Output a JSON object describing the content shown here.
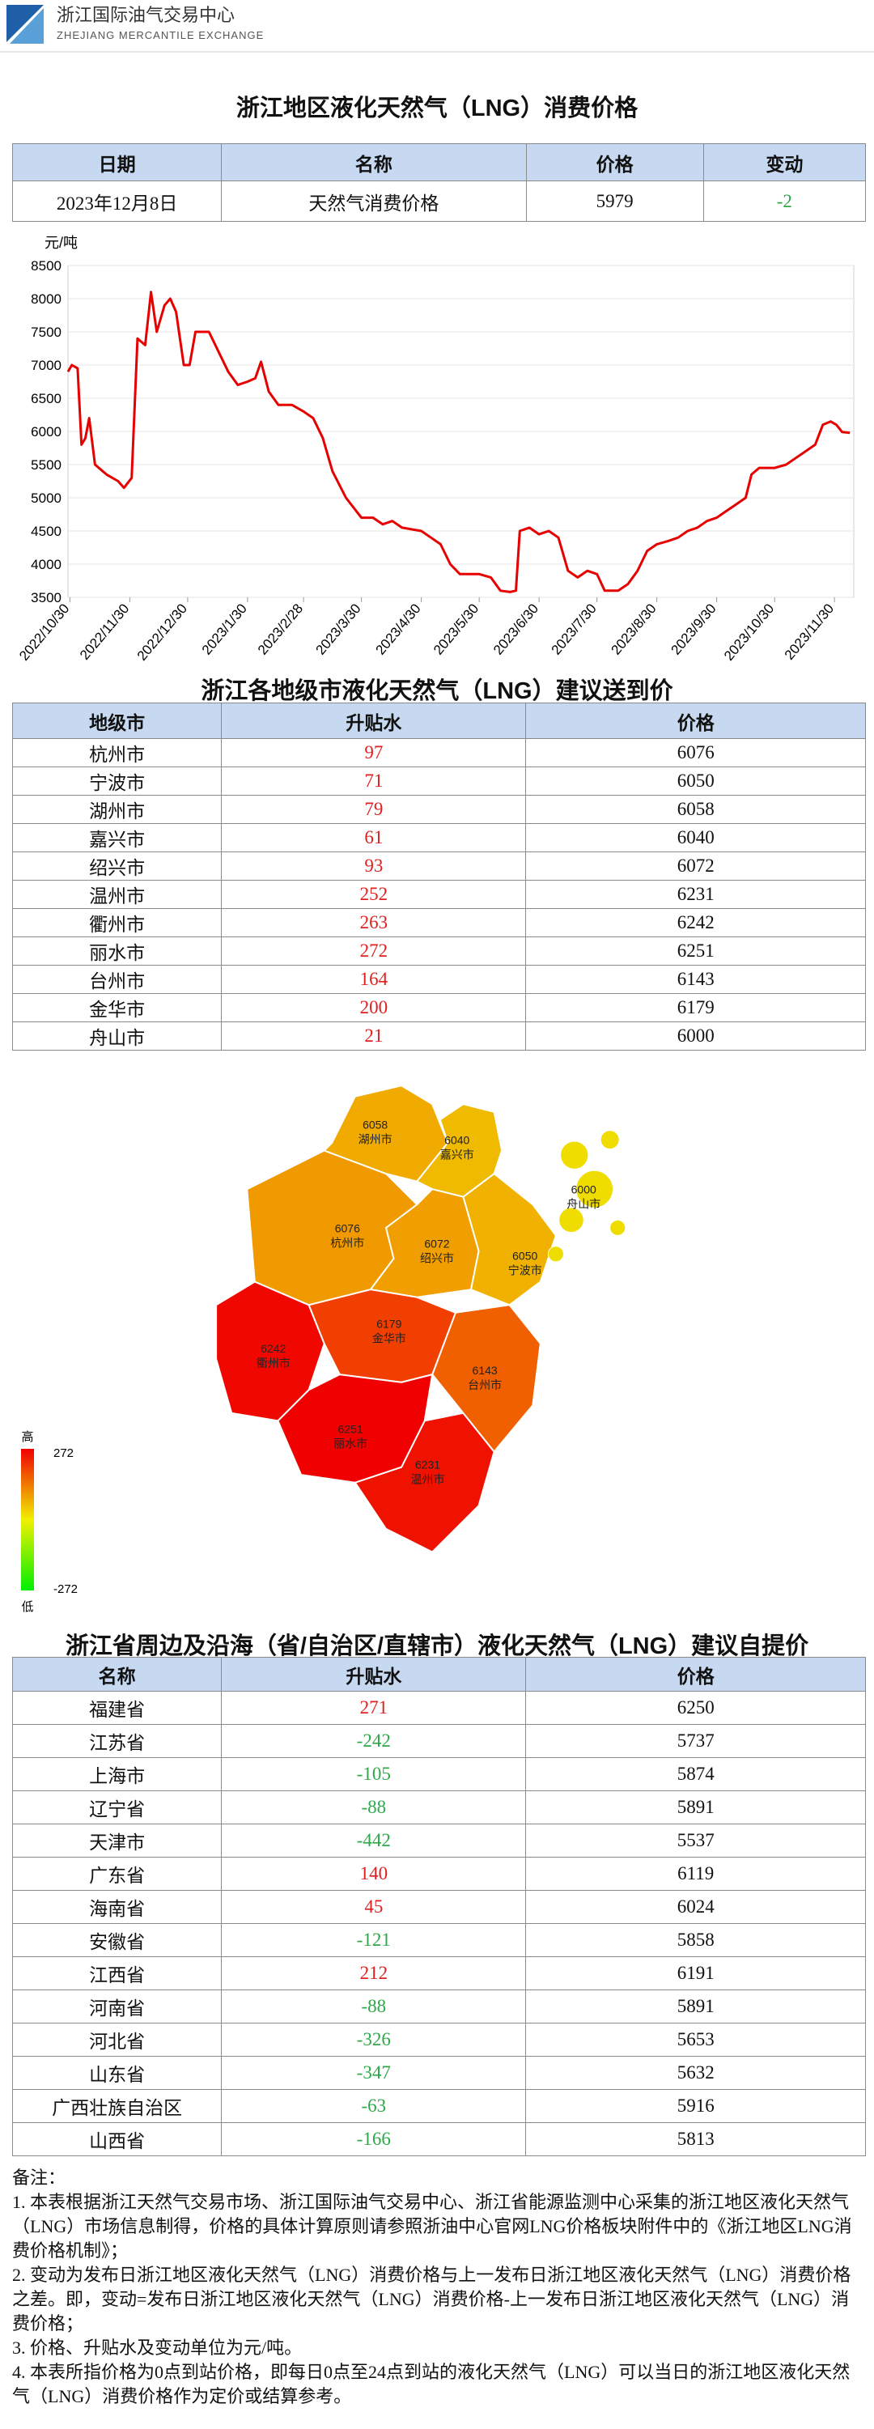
{
  "header": {
    "org_name": "浙江国际油气交易中心",
    "org_name_en": "ZHEJIANG MERCANTILE EXCHANGE"
  },
  "price_section": {
    "title": "浙江地区液化天然气（LNG）消费价格",
    "table": {
      "headers": [
        "日期",
        "名称",
        "价格",
        "变动"
      ],
      "rows": [
        [
          "2023年12月8日",
          "天然气消费价格",
          5979,
          -2
        ]
      ]
    }
  },
  "chart_data": {
    "type": "line",
    "y_label": "元/吨",
    "x": [
      "2022/10/29",
      "2022/10/31",
      "2022/11/3",
      "2022/11/5",
      "2022/11/7",
      "2022/11/9",
      "2022/11/12",
      "2022/11/18",
      "2022/11/24",
      "2022/11/27",
      "2022/12/1",
      "2022/12/4",
      "2022/12/8",
      "2022/12/11",
      "2022/12/14",
      "2022/12/18",
      "2022/12/21",
      "2022/12/24",
      "2022/12/28",
      "2022/12/31",
      "2023/1/3",
      "2023/1/10",
      "2023/1/15",
      "2023/1/20",
      "2023/1/25",
      "2023/1/30",
      "2023/2/3",
      "2023/2/6",
      "2023/2/10",
      "2023/2/15",
      "2023/2/22",
      "2023/2/28",
      "2023/3/5",
      "2023/3/10",
      "2023/3/15",
      "2023/3/22",
      "2023/3/30",
      "2023/4/5",
      "2023/4/10",
      "2023/4/15",
      "2023/4/20",
      "2023/4/30",
      "2023/5/5",
      "2023/5/10",
      "2023/5/15",
      "2023/5/20",
      "2023/5/30",
      "2023/6/5",
      "2023/6/10",
      "2023/6/15",
      "2023/6/18",
      "2023/6/20",
      "2023/6/25",
      "2023/6/30",
      "2023/7/5",
      "2023/7/10",
      "2023/7/15",
      "2023/7/20",
      "2023/7/25",
      "2023/7/30",
      "2023/8/3",
      "2023/8/10",
      "2023/8/15",
      "2023/8/20",
      "2023/8/25",
      "2023/8/30",
      "2023/9/5",
      "2023/9/10",
      "2023/9/15",
      "2023/9/20",
      "2023/9/25",
      "2023/9/30",
      "2023/10/5",
      "2023/10/10",
      "2023/10/15",
      "2023/10/18",
      "2023/10/22",
      "2023/10/30",
      "2023/11/5",
      "2023/11/10",
      "2023/11/15",
      "2023/11/20",
      "2023/11/24",
      "2023/11/28",
      "2023/12/1",
      "2023/12/4",
      "2023/12/8"
    ],
    "series": [
      {
        "color": "#e60000",
        "values": [
          6900,
          7000,
          6950,
          5800,
          5900,
          6200,
          5500,
          5350,
          5250,
          5150,
          5300,
          7400,
          7300,
          8100,
          7500,
          7900,
          8000,
          7800,
          7000,
          7000,
          7500,
          7500,
          7200,
          6900,
          6700,
          6750,
          6800,
          7050,
          6600,
          6400,
          6400,
          6300,
          6200,
          5900,
          5400,
          5000,
          4700,
          4700,
          4600,
          4650,
          4550,
          4500,
          4400,
          4300,
          4000,
          3850,
          3850,
          3800,
          3600,
          3580,
          3600,
          4500,
          4550,
          4450,
          4500,
          4400,
          3900,
          3800,
          3900,
          3850,
          3600,
          3600,
          3700,
          3900,
          4200,
          4300,
          4350,
          4400,
          4500,
          4550,
          4650,
          4700,
          4800,
          4900,
          5000,
          5350,
          5450,
          5450,
          5500,
          5600,
          5700,
          5800,
          6100,
          6150,
          6100,
          5990,
          5979
        ]
      }
    ],
    "xlim": [
      "2022/10/29",
      "2023/12/10"
    ],
    "xticks": [
      "2022/10/30",
      "2022/11/30",
      "2022/12/30",
      "2023/1/30",
      "2023/2/28",
      "2023/3/30",
      "2023/4/30",
      "2023/5/30",
      "2023/6/30",
      "2023/7/30",
      "2023/8/30",
      "2023/9/30",
      "2023/10/30",
      "2023/11/30"
    ],
    "ylim": [
      3500,
      8500
    ],
    "yticks": [
      3500,
      4000,
      4500,
      5000,
      5500,
      6000,
      6500,
      7000,
      7500,
      8000,
      8500
    ],
    "grid": true
  },
  "city_section": {
    "title": "浙江各地级市液化天然气（LNG）建议送到价",
    "table": {
      "headers": [
        "地级市",
        "升贴水",
        "价格"
      ],
      "rows": [
        [
          "杭州市",
          97,
          6076
        ],
        [
          "宁波市",
          71,
          6050
        ],
        [
          "湖州市",
          79,
          6058
        ],
        [
          "嘉兴市",
          61,
          6040
        ],
        [
          "绍兴市",
          93,
          6072
        ],
        [
          "温州市",
          252,
          6231
        ],
        [
          "衢州市",
          263,
          6242
        ],
        [
          "丽水市",
          272,
          6251
        ],
        [
          "台州市",
          164,
          6143
        ],
        [
          "金华市",
          200,
          6179
        ],
        [
          "舟山市",
          21,
          6000
        ]
      ]
    }
  },
  "map": {
    "legend": {
      "high_label": "高",
      "low_label": "低",
      "max": 272,
      "min": -272
    }
  },
  "province_section": {
    "title": "浙江省周边及沿海（省/自治区/直辖市）液化天然气（LNG）建议自提价",
    "table": {
      "headers": [
        "名称",
        "升贴水",
        "价格"
      ],
      "rows": [
        [
          "福建省",
          271,
          6250
        ],
        [
          "江苏省",
          -242,
          5737
        ],
        [
          "上海市",
          -105,
          5874
        ],
        [
          "辽宁省",
          -88,
          5891
        ],
        [
          "天津市",
          -442,
          5537
        ],
        [
          "广东省",
          140,
          6119
        ],
        [
          "海南省",
          45,
          6024
        ],
        [
          "安徽省",
          -121,
          5858
        ],
        [
          "江西省",
          212,
          6191
        ],
        [
          "河南省",
          -88,
          5891
        ],
        [
          "河北省",
          -326,
          5653
        ],
        [
          "山东省",
          -347,
          5632
        ],
        [
          "广西壮族自治区",
          -63,
          5916
        ],
        [
          "山西省",
          -166,
          5813
        ]
      ]
    }
  },
  "notes": {
    "title": "备注：",
    "items": [
      "1. 本表根据浙江天然气交易市场、浙江国际油气交易中心、浙江省能源监测中心采集的浙江地区液化天然气（LNG）市场信息制得，价格的具体计算原则请参照浙油中心官网LNG价格板块附件中的《浙江地区LNG消费价格机制》；",
      "2. 变动为发布日浙江地区液化天然气（LNG）消费价格与上一发布日浙江地区液化天然气（LNG）消费价格之差。即，变动=发布日浙江地区液化天然气（LNG）消费价格-上一发布日浙江地区液化天然气（LNG）消费价格；",
      "3. 价格、升贴水及变动单位为元/吨。",
      "4. 本表所指价格为0点到站价格，即每日0点至24点到站的液化天然气（LNG）可以当日的浙江地区液化天然气（LNG）消费价格作为定价或结算参考。"
    ]
  }
}
